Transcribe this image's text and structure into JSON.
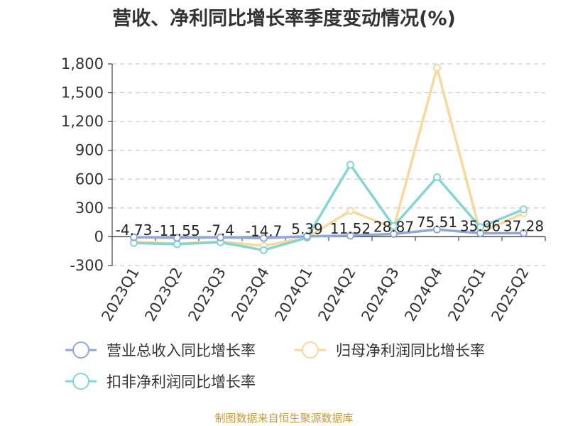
{
  "chart_data": {
    "type": "line",
    "title": "营收、净利同比增长率季度变动情况(%)",
    "categories": [
      "2023Q1",
      "2023Q2",
      "2023Q3",
      "2023Q4",
      "2024Q1",
      "2024Q2",
      "2024Q3",
      "2024Q4",
      "2025Q1",
      "2025Q2"
    ],
    "y_ticks": [
      -300,
      0,
      300,
      600,
      900,
      1200,
      1500,
      1800
    ],
    "y_tick_labels": [
      "-300",
      "0",
      "300",
      "600",
      "900",
      "1,200",
      "1,500",
      "1,800"
    ],
    "ylim": [
      -300,
      1800
    ],
    "grid": true,
    "legend_position": "bottom",
    "series": [
      {
        "name": "营业总收入同比增长率",
        "color": "#8fa8d8",
        "values": [
          -4.73,
          -11.55,
          -7.4,
          -14.7,
          5.39,
          11.52,
          28.87,
          75.51,
          35.96,
          37.28
        ],
        "data_labels": [
          "-4.73",
          "-11.55",
          "-7.4",
          "-14.7",
          "5.39",
          "11.52",
          "28.87",
          "75.51",
          "35.96",
          "37.28"
        ]
      },
      {
        "name": "归母净利润同比增长率",
        "color": "#f8d89c",
        "values": [
          -55,
          -70,
          -50,
          -95,
          -8,
          270,
          90,
          1760,
          40,
          245
        ]
      },
      {
        "name": "扣非净利润同比增长率",
        "color": "#86d4d4",
        "values": [
          -65,
          -78,
          -58,
          -140,
          -10,
          750,
          110,
          620,
          100,
          285
        ]
      }
    ]
  },
  "footer": "制图数据来自恒生聚源数据库"
}
